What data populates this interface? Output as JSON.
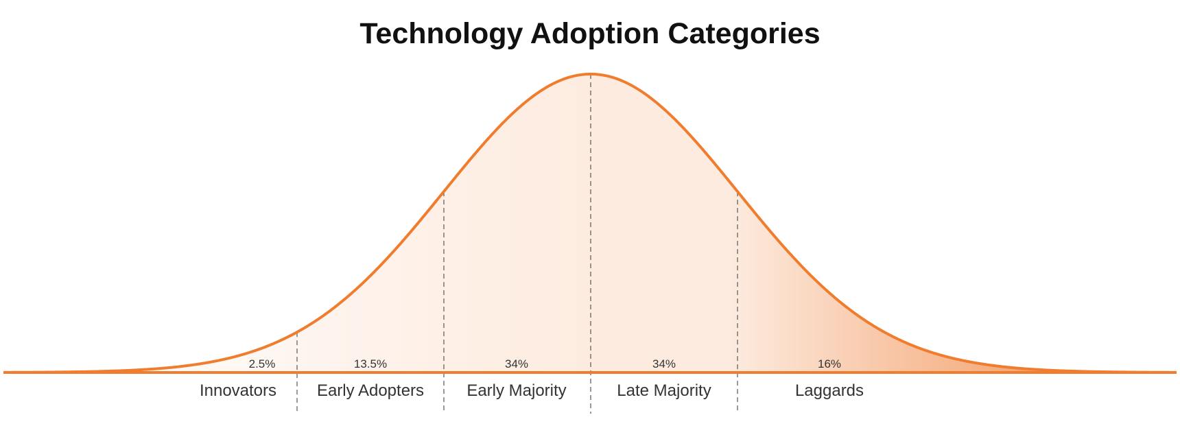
{
  "chart_data": {
    "type": "area",
    "title": "Technology Adoption Categories",
    "distribution": "normal",
    "categories": [
      "Innovators",
      "Early Adopters",
      "Early Majority",
      "Late Majority",
      "Laggards"
    ],
    "values": [
      2.5,
      13.5,
      34,
      34,
      16
    ],
    "value_labels": [
      "2.5%",
      "13.5%",
      "34%",
      "34%",
      "16%"
    ],
    "boundaries_sigma": [
      -2,
      -1,
      0,
      1
    ],
    "grid": false,
    "legend": "none"
  },
  "colors": {
    "curve": "#f07c2e",
    "fill_start": "#ffffff",
    "fill_mid": "#fdebdf",
    "fill_end": "#ef8440",
    "divider": "#555555",
    "text": "#333333"
  }
}
